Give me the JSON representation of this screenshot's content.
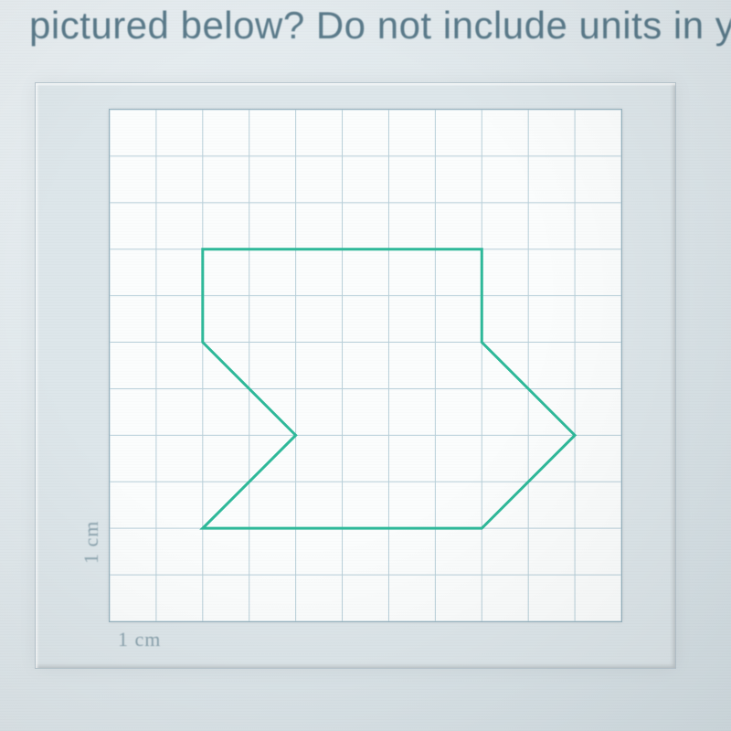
{
  "question": {
    "visible_line": "pictured below? Do not include units in y"
  },
  "figure": {
    "type": "polygon-on-grid",
    "background_color": "#dde6ea",
    "plate_color": "#fbfdfd",
    "plate_border_color": "#99b3bf",
    "grid": {
      "cols": 11,
      "rows": 11,
      "line_color": "#b8cfd9",
      "line_width": 1
    },
    "axis_labels": {
      "bottom": "1 cm",
      "left": "1 cm",
      "label_color": "#8aa2ad",
      "label_fontsize": 22
    },
    "polygon": {
      "stroke": "#2fb99a",
      "stroke_width": 3,
      "fill": "none",
      "points_grid": [
        [
          2,
          8
        ],
        [
          8,
          8
        ],
        [
          8,
          6
        ],
        [
          10,
          4
        ],
        [
          8,
          2
        ],
        [
          2,
          2
        ],
        [
          4,
          4
        ],
        [
          2,
          6
        ],
        [
          2,
          8
        ]
      ]
    }
  }
}
